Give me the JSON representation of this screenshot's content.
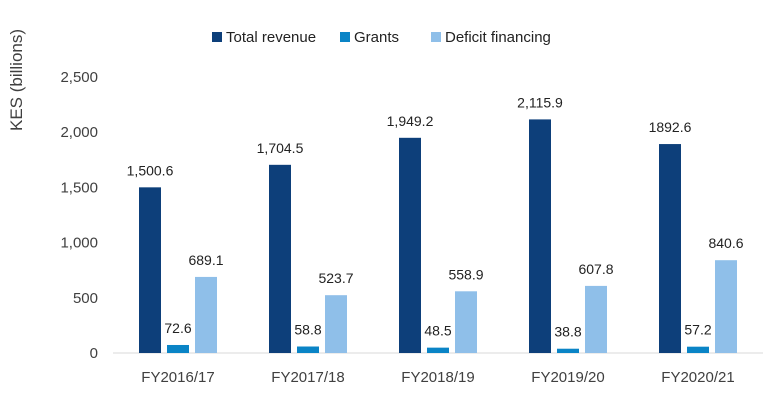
{
  "chart_data": {
    "type": "bar",
    "title": "",
    "xlabel": "",
    "ylabel": "KES (billions)",
    "ylim": [
      0,
      2500
    ],
    "yticks": [
      0,
      500,
      1000,
      1500,
      2000,
      2500
    ],
    "ytick_labels": [
      "0",
      "500",
      "1,000",
      "1,500",
      "2,000",
      "2,500"
    ],
    "grid": false,
    "legend_position": "top",
    "categories": [
      "FY2016/17",
      "FY2017/18",
      "FY2018/19",
      "FY2019/20",
      "FY2020/21"
    ],
    "series": [
      {
        "name": "Total revenue",
        "color": "#0d3f7a",
        "values": [
          1500.6,
          1704.5,
          1949.2,
          2115.9,
          1892.6
        ],
        "labels": [
          "1,500.6",
          "1,704.5",
          "1,949.2",
          "2,115.9",
          "1892.6"
        ]
      },
      {
        "name": "Grants",
        "color": "#0a84c6",
        "values": [
          72.6,
          58.8,
          48.5,
          38.8,
          57.2
        ],
        "labels": [
          "72.6",
          "58.8",
          "48.5",
          "38.8",
          "57.2"
        ]
      },
      {
        "name": "Deficit financing",
        "color": "#8fbfe9",
        "values": [
          689.1,
          523.7,
          558.9,
          607.8,
          840.6
        ],
        "labels": [
          "689.1",
          "523.7",
          "558.9",
          "607.8",
          "840.6"
        ]
      }
    ]
  }
}
